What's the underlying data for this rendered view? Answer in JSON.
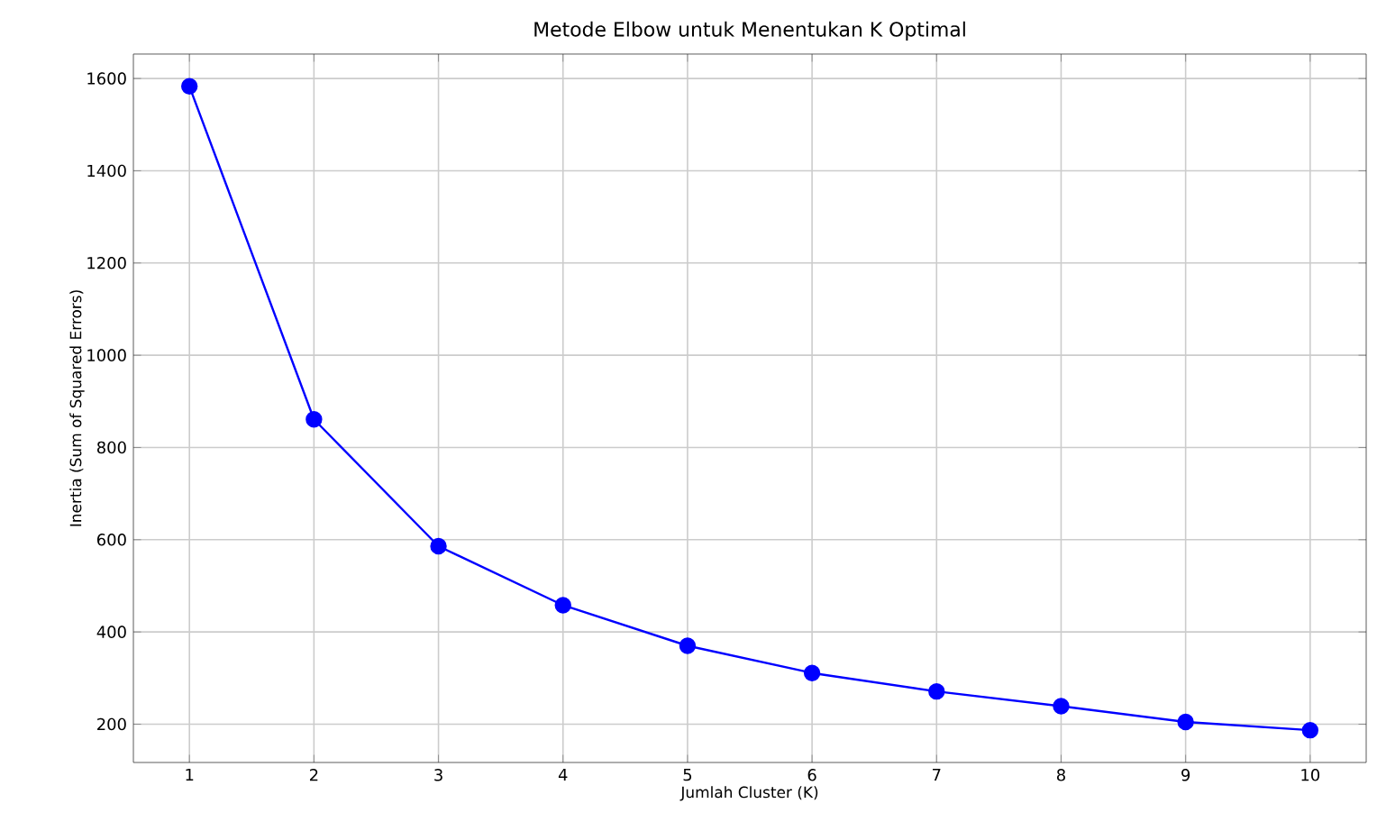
{
  "chart_data": {
    "type": "line",
    "title": "Metode Elbow untuk Menentukan K Optimal",
    "xlabel": "Jumlah Cluster (K)",
    "ylabel": "Inertia (Sum of Squared Errors)",
    "x": [
      1,
      2,
      3,
      4,
      5,
      6,
      7,
      8,
      9,
      10
    ],
    "series": [
      {
        "color": "#0000ff",
        "values": [
          1583,
          861,
          586,
          458,
          370,
          311,
          271,
          239,
          205,
          187
        ]
      }
    ],
    "xlim": [
      0.55,
      10.45
    ],
    "xticks": [
      1,
      2,
      3,
      4,
      5,
      6,
      7,
      8,
      9,
      10
    ],
    "ylim": [
      117,
      1653
    ],
    "yticks": [
      200,
      400,
      600,
      800,
      1000,
      1200,
      1400,
      1600
    ],
    "grid": true,
    "marker": "circle",
    "line_style": "solid"
  }
}
